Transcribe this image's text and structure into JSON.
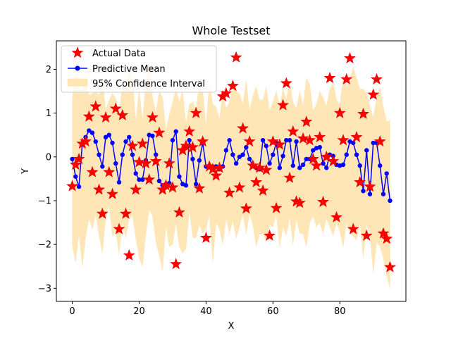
{
  "chart_data": {
    "type": "scatter",
    "title": "Whole Testset",
    "xlabel": "X",
    "ylabel": "Y",
    "xlim": [
      -4.75,
      99.75
    ],
    "ylim": [
      -3.3,
      2.65
    ],
    "xticks": [
      0,
      20,
      40,
      60,
      80
    ],
    "yticks": [
      -3,
      -2,
      -1,
      0,
      1,
      2
    ],
    "grid": false,
    "legend_position": "top-left",
    "colors": {
      "actual": "#ff0000",
      "actual_edge": "#e00000",
      "mean": "#0000ff",
      "band": "#ffe6b6",
      "band_edge": "#ffe6b6"
    },
    "series": [
      {
        "name": "Actual Data",
        "style": "star-marker",
        "values": [
          -0.67,
          -0.18,
          -0.05,
          0.3,
          0.35,
          0.92,
          -0.35,
          1.15,
          -0.75,
          -1.3,
          0.9,
          -0.35,
          -0.85,
          1.1,
          -1.65,
          0.95,
          -1.3,
          -2.25,
          0.25,
          -0.75,
          -0.12,
          0.3,
          -0.15,
          -0.52,
          0.9,
          -0.1,
          0.55,
          -0.75,
          -0.65,
          -0.15,
          -0.7,
          -2.45,
          -1.27,
          0.15,
          0.25,
          0.58,
          0.22,
          1.0,
          -0.72,
          0.35,
          -1.85,
          -0.22,
          -0.28,
          -0.43,
          -0.25,
          1.38,
          1.45,
          -0.82,
          1.62,
          2.27,
          -0.7,
          0.65,
          -1.18,
          0.35,
          -0.2,
          -0.58,
          -0.25,
          -0.77,
          -0.3,
          -1.8,
          0.35,
          -1.17,
          0.28,
          1.18,
          1.68,
          -0.48,
          0.58,
          -1.02,
          -1.05,
          0.42,
          0.8,
          0.38,
          -0.05,
          -0.2,
          0.45,
          -1.03,
          0.0,
          1.8,
          -0.1,
          -1.38,
          1.0,
          0.38,
          1.77,
          2.25,
          -1.65,
          0.45,
          -0.58,
          0.98,
          -1.8,
          -0.68,
          1.42,
          1.77,
          0.35,
          -1.75,
          -1.87,
          -2.52
        ]
      },
      {
        "name": "Predictive Mean",
        "style": "line-dot",
        "values": [
          -0.05,
          -0.45,
          -0.68,
          0.3,
          0.45,
          0.6,
          0.55,
          0.35,
          0.05,
          -0.22,
          0.45,
          0.5,
          0.32,
          -0.15,
          -0.58,
          0.05,
          0.35,
          0.45,
          0.05,
          -0.38,
          -0.52,
          -0.52,
          -0.08,
          0.5,
          0.48,
          0.05,
          -0.55,
          -0.65,
          -0.62,
          -0.6,
          0.38,
          0.58,
          -0.45,
          -0.62,
          -0.65,
          0.38,
          -0.05,
          -0.62,
          -0.08,
          0.32,
          -0.22,
          -0.2,
          -0.25,
          -0.22,
          -0.28,
          -0.22,
          0.15,
          0.38,
          0.05,
          -0.15,
          0.0,
          0.05,
          0.22,
          -0.05,
          -0.2,
          -0.25,
          -0.28,
          0.38,
          0.25,
          -0.15,
          0.05,
          0.32,
          -0.25,
          0.02,
          0.38,
          0.38,
          -0.2,
          0.35,
          -0.25,
          -0.18,
          -0.05,
          -0.05,
          0.15,
          0.2,
          0.22,
          -0.15,
          -0.25,
          0.05,
          0.02,
          -0.18,
          -0.2,
          -0.18,
          0.05,
          0.35,
          0.32,
          0.05,
          -0.2,
          -0.78,
          0.15,
          -0.85,
          0.32,
          0.32,
          -0.2,
          -0.85,
          -0.38,
          -1.0
        ]
      },
      {
        "name": "95% Confidence Interval",
        "style": "band",
        "upper": [
          1.35,
          1.9,
          1.55,
          1.5,
          1.75,
          1.4,
          1.45,
          1.5,
          1.4,
          1.85,
          1.05,
          1.3,
          1.45,
          1.35,
          0.95,
          1.7,
          1.65,
          1.95,
          1.75,
          0.8,
          1.55,
          0.8,
          1.75,
          2.25,
          1.35,
          1.0,
          1.5,
          1.35,
          0.6,
          0.95,
          1.25,
          1.55,
          1.25,
          1.5,
          0.75,
          1.2,
          1.25,
          1.1,
          1.65,
          1.5,
          0.7,
          1.7,
          1.2,
          1.15,
          0.85,
          1.45,
          1.1,
          1.25,
          1.55,
          1.5,
          1.45,
          1.2,
          1.75,
          1.05,
          1.4,
          1.6,
          1.3,
          1.3,
          1.6,
          1.05,
          1.25,
          1.5,
          1.15,
          1.55,
          1.3,
          1.75,
          1.25,
          1.1,
          1.5,
          1.15,
          1.8,
          1.65,
          1.05,
          1.2,
          1.5,
          1.35,
          1.15,
          1.55,
          1.7,
          1.3,
          1.2,
          1.8,
          1.6,
          1.75,
          2.05,
          1.8,
          1.55,
          1.55,
          1.45,
          1.15,
          0.9,
          1.35,
          1.6,
          1.15,
          0.8,
          0.85
        ],
        "lower": [
          -2.0,
          -2.4,
          -1.75,
          -2.5,
          -1.85,
          -1.4,
          -1.65,
          -1.3,
          -1.8,
          -2.2,
          -1.4,
          -1.1,
          -1.8,
          -1.7,
          -2.2,
          -1.5,
          -1.85,
          -1.4,
          -1.35,
          -1.85,
          -2.3,
          -2.5,
          -1.75,
          -1.2,
          -1.35,
          -1.95,
          -2.25,
          -2.6,
          -1.55,
          -2.05,
          -2.0,
          -1.5,
          -2.05,
          -2.2,
          -2.1,
          -1.2,
          -1.85,
          -1.85,
          -1.55,
          -1.75,
          -1.65,
          -1.3,
          -2.4,
          -1.5,
          -1.65,
          -2.0,
          -1.4,
          -1.75,
          -1.45,
          -1.85,
          -1.6,
          -1.3,
          -1.75,
          -1.3,
          -1.55,
          -2.05,
          -1.75,
          -1.75,
          -1.95,
          -1.55,
          -1.6,
          -1.3,
          -2.05,
          -1.6,
          -1.8,
          -1.35,
          -2.0,
          -1.4,
          -1.75,
          -1.75,
          -2.05,
          -1.5,
          -1.35,
          -1.6,
          -1.5,
          -1.75,
          -1.4,
          -1.6,
          -1.8,
          -1.5,
          -1.7,
          -2.05,
          -1.5,
          -1.75,
          -1.8,
          -1.9,
          -1.5,
          -2.3,
          -1.55,
          -1.75,
          -2.65,
          -1.95,
          -2.05,
          -2.3,
          -2.7,
          -3.0
        ]
      }
    ]
  }
}
